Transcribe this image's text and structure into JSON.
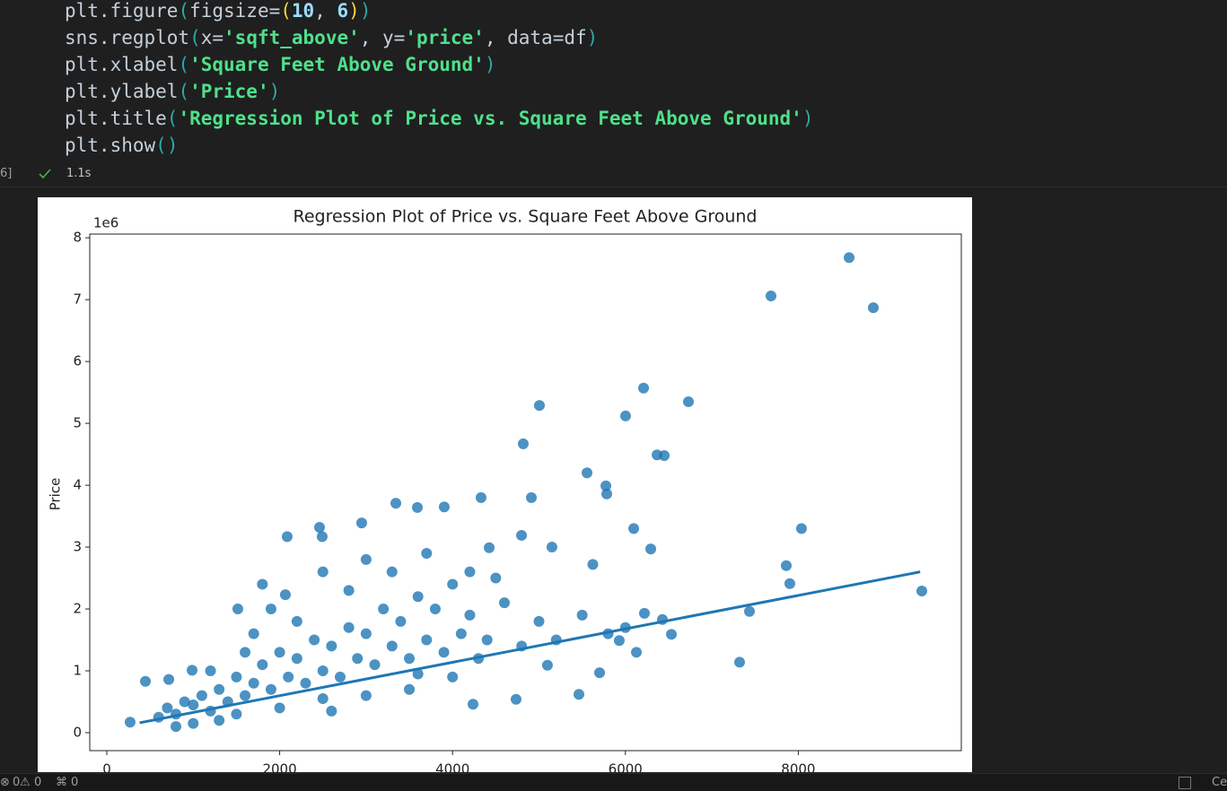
{
  "code": {
    "lines": [
      "plt.figure(figsize=(10, 6))",
      "sns.regplot(x='sqft_above', y='price', data=df)",
      "plt.xlabel('Square Feet Above Ground')",
      "plt.ylabel('Price')",
      "plt.title('Regression Plot of Price vs. Square Feet Above Ground')",
      "plt.show()"
    ]
  },
  "cell": {
    "execution_count": "6]",
    "duration": "1.1s"
  },
  "chart_data": {
    "type": "scatter",
    "title": "Regression Plot of Price vs. Square Feet Above Ground",
    "y_label": "Price",
    "y_offset_label": "1e6",
    "xlim": [
      -197,
      9886
    ],
    "ylim": [
      -0.29,
      8.06
    ],
    "xticks": [
      0,
      2000,
      4000,
      6000,
      8000
    ],
    "yticks": [
      0,
      1,
      2,
      3,
      4,
      5,
      6,
      7,
      8
    ],
    "grid": false,
    "series": [
      {
        "type": "scatter",
        "color": "#1f77b4",
        "x": [
          8588,
          7684,
          8868,
          6210,
          6729,
          5005,
          6002,
          4818,
          6366,
          6449,
          5556,
          5774,
          5784,
          3344,
          4330,
          4912,
          8037,
          6096,
          6293,
          7861,
          9429,
          7902,
          7435,
          7321,
          5462,
          6428,
          6532,
          6220,
          6127,
          2492,
          2087,
          2461,
          2949,
          3593,
          3904,
          2066,
          1516,
          270,
          447,
          717,
          987,
          4424,
          4798,
          5150,
          5623,
          5929,
          5701,
          5098,
          4735,
          4237,
          600,
          700,
          800,
          900,
          1000,
          1100,
          1200,
          1300,
          1400,
          1500,
          1600,
          1700,
          1800,
          1900,
          2000,
          2100,
          2200,
          2300,
          2400,
          2500,
          2600,
          2700,
          2800,
          2900,
          3000,
          3100,
          3200,
          3300,
          3400,
          3500,
          3600,
          3700,
          3800,
          3900,
          4000,
          4100,
          4200,
          4400,
          4600,
          4800,
          5000,
          1000,
          1500,
          2000,
          2500,
          3000,
          3500,
          4000,
          1200,
          1600,
          2200,
          2800,
          3300,
          3700,
          1800,
          2500,
          3000,
          4200,
          4500,
          1300,
          800,
          2600,
          1700,
          1900,
          3600,
          4300,
          5200,
          5500,
          5800,
          6000
        ],
        "values": [
          7.68,
          7.06,
          6.87,
          5.57,
          5.35,
          5.29,
          5.12,
          4.67,
          4.49,
          4.48,
          4.2,
          3.99,
          3.86,
          3.71,
          3.8,
          3.8,
          3.3,
          3.3,
          2.97,
          2.7,
          2.29,
          2.41,
          1.96,
          1.14,
          0.62,
          1.83,
          1.59,
          1.93,
          1.3,
          3.17,
          3.17,
          3.32,
          3.39,
          3.64,
          3.65,
          2.23,
          2.0,
          0.17,
          0.83,
          0.86,
          1.01,
          2.99,
          3.19,
          3.0,
          2.72,
          1.49,
          0.97,
          1.09,
          0.54,
          0.46,
          0.25,
          0.4,
          0.3,
          0.5,
          0.45,
          0.6,
          0.35,
          0.7,
          0.5,
          0.9,
          0.6,
          0.8,
          1.1,
          0.7,
          1.3,
          0.9,
          1.2,
          0.8,
          1.5,
          1.0,
          1.4,
          0.9,
          1.7,
          1.2,
          1.6,
          1.1,
          2.0,
          1.4,
          1.8,
          1.2,
          2.2,
          1.5,
          2.0,
          1.3,
          2.4,
          1.6,
          1.9,
          1.5,
          2.1,
          1.4,
          1.8,
          0.15,
          0.3,
          0.4,
          0.55,
          0.6,
          0.7,
          0.9,
          1.0,
          1.3,
          1.8,
          2.3,
          2.6,
          2.9,
          2.4,
          2.6,
          2.8,
          2.6,
          2.5,
          0.2,
          0.1,
          0.35,
          1.6,
          2.0,
          0.95,
          1.2,
          1.5,
          1.9,
          1.6,
          1.7
        ]
      },
      {
        "type": "line",
        "color": "#1f77b4",
        "x": [
          380,
          9410
        ],
        "values": [
          0.16,
          2.6
        ]
      }
    ]
  },
  "status_bar": {
    "errors": "0",
    "warnings": "0",
    "ports": "0",
    "right": "Ce"
  }
}
